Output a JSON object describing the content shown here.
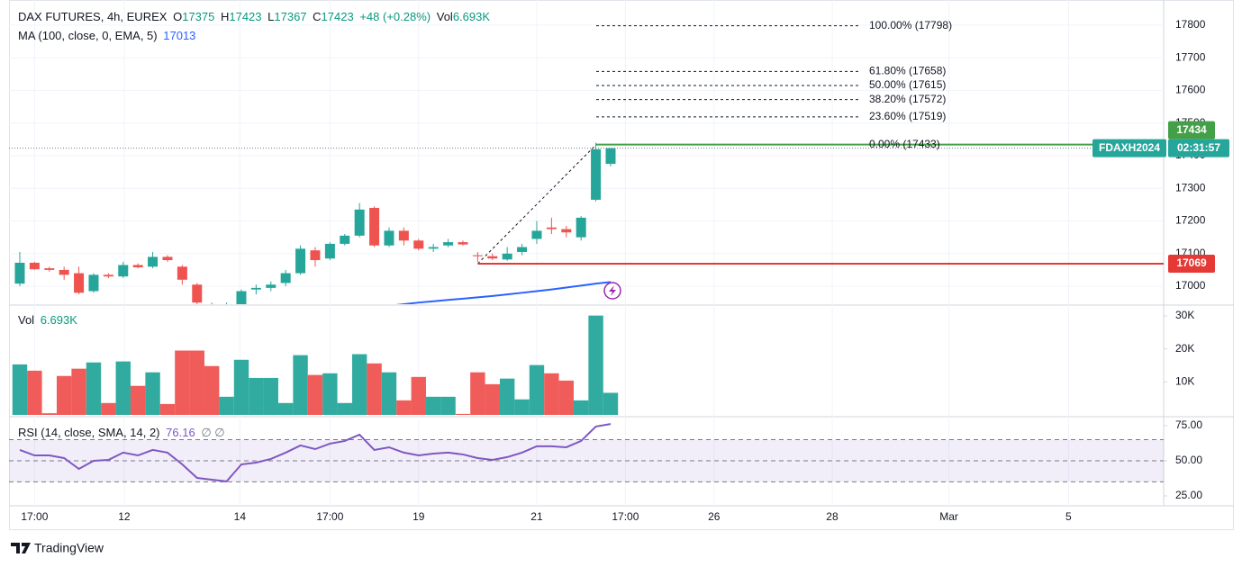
{
  "chart_data": {
    "type": "candlestick",
    "symbol": "DAX FUTURES, 4h, EUREX",
    "change": "+48 (+0.28%)",
    "up_color": "#26a69a",
    "down_color": "#ef5350",
    "open": [
      17008,
      17072,
      17055,
      17050,
      17040,
      16985,
      17035,
      17030,
      17065,
      17060,
      17090,
      17060,
      17005,
      16945,
      16935,
      16945,
      16990,
      16995,
      17010,
      17040,
      17110,
      17085,
      17130,
      17155,
      17240,
      17125,
      17170,
      17140,
      17115,
      17125,
      17135,
      17095,
      17092,
      17082,
      17105,
      17145,
      17180,
      17175,
      17150,
      17265,
      17375
    ],
    "high": [
      17105,
      17075,
      17060,
      17060,
      17060,
      17040,
      17040,
      17075,
      17070,
      17105,
      17095,
      17065,
      17010,
      16950,
      16950,
      16990,
      17005,
      17015,
      17050,
      17125,
      17120,
      17135,
      17160,
      17255,
      17245,
      17180,
      17180,
      17145,
      17130,
      17145,
      17140,
      17105,
      17100,
      17120,
      17130,
      17200,
      17210,
      17185,
      17215,
      17440,
      17423
    ],
    "low": [
      17000,
      17050,
      17045,
      17020,
      16975,
      16980,
      17025,
      17025,
      17055,
      17055,
      17075,
      17005,
      16945,
      16930,
      16920,
      16940,
      16975,
      16985,
      17000,
      17035,
      17060,
      17080,
      17125,
      17150,
      17120,
      17120,
      17125,
      17110,
      17105,
      17120,
      17125,
      17075,
      17080,
      17078,
      17095,
      17130,
      17160,
      17150,
      17140,
      17260,
      17367
    ],
    "close": [
      17072,
      17052,
      17050,
      17035,
      16980,
      17035,
      17030,
      17065,
      17058,
      17090,
      17080,
      17020,
      16950,
      16940,
      16945,
      16985,
      16995,
      17005,
      17040,
      17115,
      17080,
      17130,
      17155,
      17235,
      17125,
      17170,
      17140,
      17115,
      17120,
      17135,
      17128,
      17092,
      17085,
      17100,
      17120,
      17170,
      17175,
      17165,
      17210,
      17420,
      17423
    ],
    "ma": {
      "label": "MA (100, close, 0, EMA, 5)",
      "color": "#2962ff",
      "values": [
        null,
        null,
        null,
        null,
        null,
        null,
        null,
        null,
        null,
        null,
        null,
        null,
        null,
        null,
        null,
        null,
        null,
        null,
        null,
        null,
        null,
        null,
        null,
        null,
        null,
        16940,
        16945,
        16950,
        16954,
        16958,
        16962,
        16966,
        16970,
        16975,
        16980,
        16985,
        16990,
        16996,
        17002,
        17008,
        17013
      ]
    },
    "volume": {
      "label": "Vol",
      "last_label": "6.693K",
      "values": [
        15300,
        13400,
        500,
        11800,
        14000,
        15900,
        3600,
        16200,
        8800,
        12900,
        3300,
        19500,
        19500,
        14800,
        5500,
        16700,
        11200,
        11200,
        3600,
        18100,
        12100,
        12600,
        3600,
        18400,
        15600,
        12900,
        4400,
        11500,
        5500,
        5500,
        300,
        12900,
        9300,
        11000,
        4700,
        15100,
        12600,
        10400,
        4400,
        30100,
        6693
      ],
      "ylim": [
        0,
        33000
      ],
      "yticks": [
        {
          "value": 10000,
          "label": "10K"
        },
        {
          "value": 20000,
          "label": "20K"
        },
        {
          "value": 30000,
          "label": "30K"
        }
      ]
    },
    "rsi": {
      "label": "RSI (14, close, SMA, 14, 2)",
      "extra": "∅ ∅",
      "color": "#7e57c2",
      "values": [
        57.7,
        53.8,
        53.8,
        51.9,
        44.2,
        50,
        50.6,
        55.8,
        53.8,
        57.7,
        55.8,
        47.4,
        37.8,
        36.5,
        35.3,
        47.4,
        48.7,
        51.3,
        55.8,
        60.9,
        58.3,
        62.2,
        64.1,
        68.6,
        57.7,
        59.6,
        55.8,
        53.8,
        55.1,
        55.8,
        54.5,
        51.9,
        50.6,
        52.6,
        55.8,
        60.3,
        60.3,
        59.6,
        64.1,
        74.4,
        76.16
      ],
      "bands": [
        35,
        50,
        65
      ],
      "ylim": [
        19.2,
        80.1
      ],
      "yticks": [
        {
          "value": 25,
          "label": "25.00"
        },
        {
          "value": 50,
          "label": "50.00"
        },
        {
          "value": 75,
          "label": "75.00"
        }
      ]
    },
    "ylim": [
      16945,
      17877
    ],
    "yticks": [
      17000,
      17100,
      17200,
      17300,
      17400,
      17500,
      17600,
      17700,
      17800
    ],
    "xlim": [
      -0.73,
      77.44
    ],
    "xticks": [
      {
        "value": 1,
        "label": "17:00"
      },
      {
        "value": 7.07,
        "label": "12"
      },
      {
        "value": 14.9,
        "label": "14"
      },
      {
        "value": 21,
        "label": "17:00"
      },
      {
        "value": 27,
        "label": "19"
      },
      {
        "value": 35,
        "label": "21"
      },
      {
        "value": 41,
        "label": "17:00"
      },
      {
        "value": 47,
        "label": "26"
      },
      {
        "value": 55,
        "label": "28"
      },
      {
        "value": 62.9,
        "label": "Mar"
      },
      {
        "value": 71,
        "label": "5"
      }
    ],
    "grid": true,
    "fib_levels": [
      {
        "value": 17798,
        "label": "100.00% (17798)"
      },
      {
        "value": 17658,
        "label": "61.80% (17658)"
      },
      {
        "value": 17615,
        "label": "50.00% (17615)"
      },
      {
        "value": 17572,
        "label": "38.20% (17572)"
      },
      {
        "value": 17519,
        "label": "23.60% (17519)"
      },
      {
        "value": 17433,
        "label": "0.00% (17433)"
      }
    ],
    "horizontal_lines": [
      {
        "value": 17434,
        "color": "#43a047"
      },
      {
        "value": 17069,
        "color": "#e53935"
      }
    ],
    "symbol_badge": "FDAXH2024",
    "countdown": "02:31:57",
    "brand": "TradingView"
  }
}
